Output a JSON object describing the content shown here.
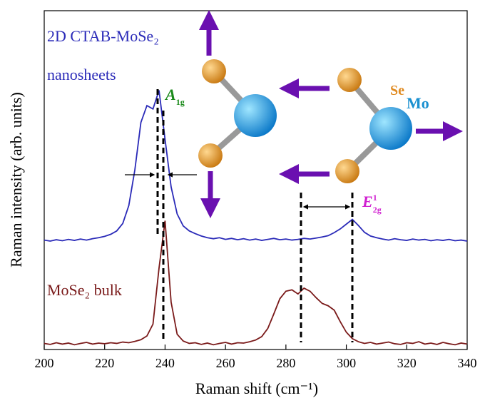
{
  "chart_data": {
    "type": "line",
    "xlabel": "Raman shift (cm⁻¹)",
    "ylabel": "Raman intensity (arb. units)",
    "x": [
      200,
      202,
      204,
      206,
      208,
      210,
      212,
      214,
      216,
      218,
      220,
      222,
      224,
      226,
      228,
      230,
      232,
      234,
      236,
      238,
      240,
      242,
      244,
      246,
      248,
      250,
      252,
      254,
      256,
      258,
      260,
      262,
      264,
      266,
      268,
      270,
      272,
      274,
      276,
      278,
      280,
      282,
      284,
      286,
      288,
      290,
      292,
      294,
      296,
      298,
      300,
      302,
      304,
      306,
      308,
      310,
      312,
      314,
      316,
      318,
      320,
      322,
      324,
      326,
      328,
      330,
      332,
      334,
      336,
      338,
      340
    ],
    "xlim": [
      200,
      340
    ],
    "xticks": [
      200,
      220,
      240,
      260,
      280,
      300,
      320,
      340
    ],
    "ylim": [
      0,
      100
    ],
    "series": [
      {
        "name": "2D CTAB-MoSe₂ nanosheets",
        "color": "#2a2ab8",
        "values": [
          32.3,
          32.0,
          32.4,
          32.1,
          32.5,
          32.2,
          32.6,
          32.3,
          32.7,
          33.0,
          33.4,
          34.0,
          35.0,
          37.2,
          42.5,
          53,
          67,
          72,
          71,
          76.5,
          62,
          48,
          40,
          36.5,
          35,
          34.2,
          33.5,
          33.0,
          32.7,
          33.0,
          32.5,
          32.8,
          32.4,
          32.7,
          32.3,
          32.6,
          32.2,
          32.5,
          32.8,
          32.4,
          32.6,
          32.3,
          32.5,
          32.8,
          32.6,
          32.9,
          33.2,
          33.6,
          34.5,
          35.6,
          37.0,
          38.4,
          36.6,
          34.6,
          33.5,
          33.0,
          32.6,
          32.3,
          32.7,
          32.4,
          32.2,
          32.6,
          32.3,
          32.5,
          32.1,
          32.4,
          32.2,
          32.5,
          32.1,
          32.3,
          32.0
        ]
      },
      {
        "name": "MoSe₂ bulk",
        "color": "#7a1a1a",
        "values": [
          1.8,
          1.5,
          2.0,
          1.6,
          1.9,
          1.4,
          1.8,
          2.1,
          1.6,
          1.9,
          1.7,
          2.0,
          1.8,
          2.2,
          2.0,
          2.4,
          2.9,
          4.0,
          7.5,
          24,
          38,
          14,
          4.5,
          2.5,
          1.8,
          2.0,
          1.5,
          1.9,
          1.4,
          1.8,
          2.1,
          1.6,
          2.0,
          1.9,
          2.3,
          2.8,
          3.8,
          6.2,
          10.5,
          15,
          17.2,
          17.6,
          16.4,
          18.1,
          17.2,
          15.3,
          13.6,
          12.9,
          11.6,
          8.2,
          5.1,
          3.2,
          2.3,
          1.8,
          2.1,
          1.6,
          1.9,
          2.2,
          1.7,
          1.5,
          2.0,
          1.8,
          2.3,
          1.6,
          1.9,
          1.5,
          2.1,
          1.7,
          1.4,
          1.9,
          1.6
        ]
      }
    ],
    "annotations": [
      {
        "base": "A",
        "sub": "1g",
        "color": "#1a8a1a"
      },
      {
        "base": "E",
        "sub": "2g",
        "sup": "1",
        "color": "#d020d0"
      },
      {
        "text": "Se",
        "color": "#e08a20"
      },
      {
        "text": "Mo",
        "color": "#1a90d0"
      }
    ]
  }
}
